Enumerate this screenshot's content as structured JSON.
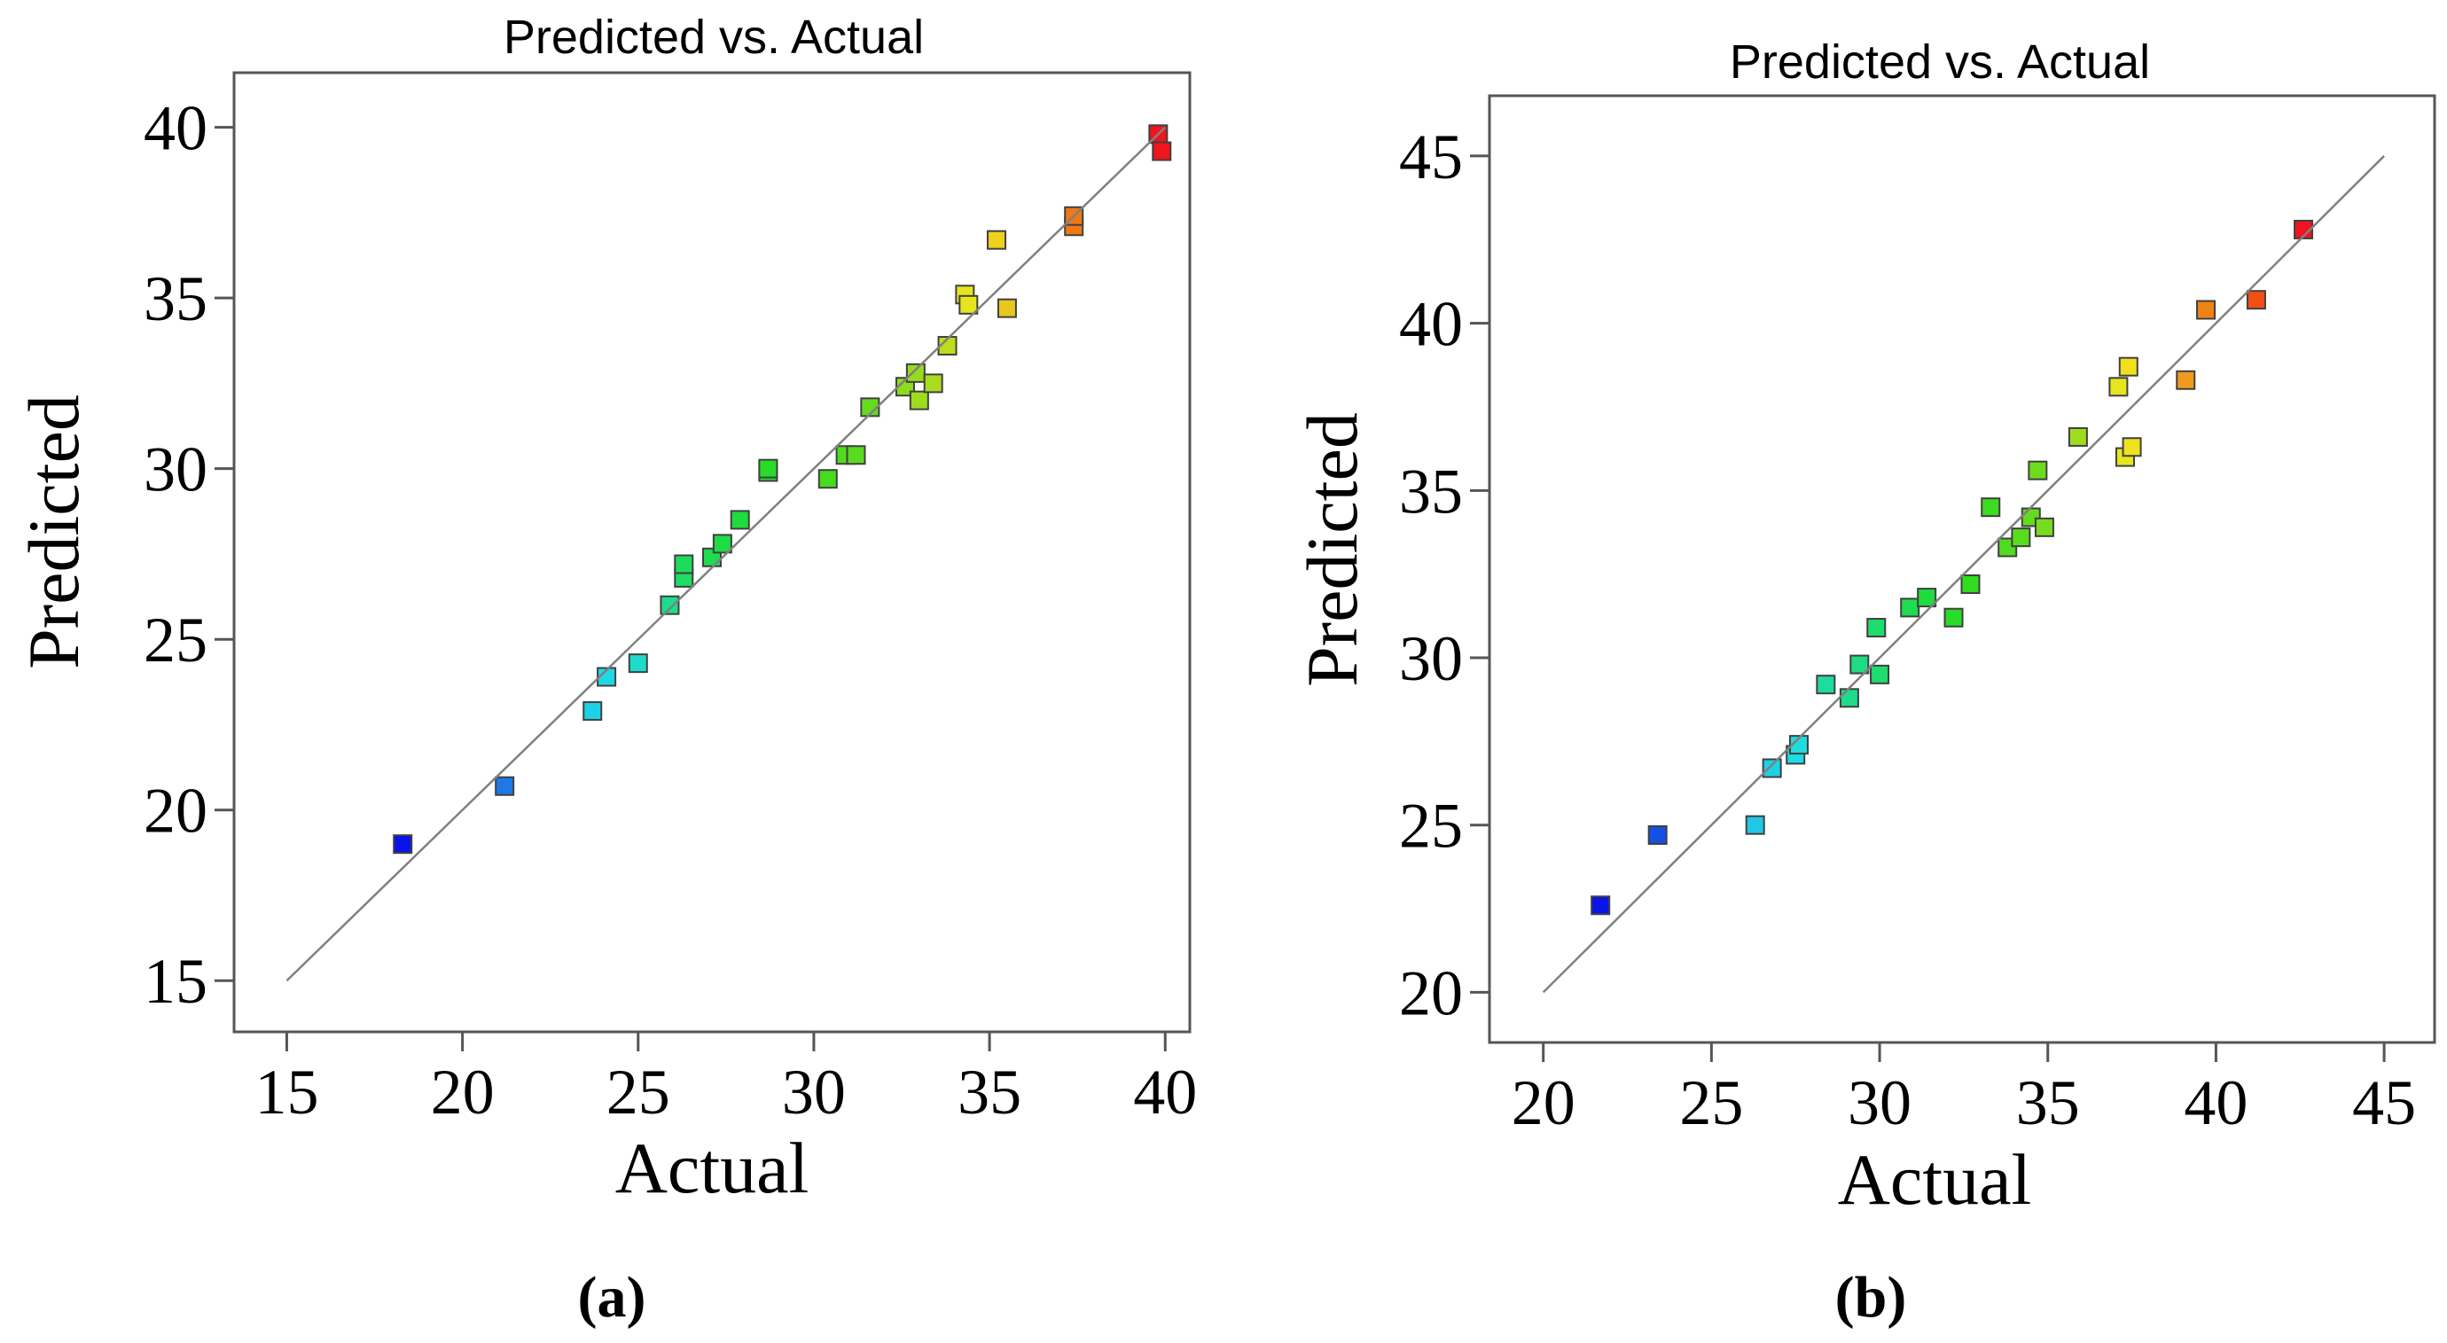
{
  "chart_data": [
    {
      "type": "scatter",
      "panel_label": "(a)",
      "title": "Predicted vs. Actual",
      "xlabel": "Actual",
      "ylabel": "Predicted",
      "xlim": [
        13.5,
        40.7
      ],
      "ylim": [
        13.5,
        41.6
      ],
      "xticks": [
        15,
        20,
        25,
        30,
        35,
        40
      ],
      "yticks": [
        15,
        20,
        25,
        30,
        35,
        40
      ],
      "reference_line": [
        [
          15,
          15
        ],
        [
          40,
          40
        ]
      ],
      "points": [
        {
          "x": 18.3,
          "y": 19.0,
          "color": "#0a14e8"
        },
        {
          "x": 21.2,
          "y": 20.7,
          "color": "#1e78e6"
        },
        {
          "x": 23.7,
          "y": 22.9,
          "color": "#1ed2e6"
        },
        {
          "x": 24.1,
          "y": 23.9,
          "color": "#1ed8e6"
        },
        {
          "x": 25.0,
          "y": 24.3,
          "color": "#1edccc"
        },
        {
          "x": 25.9,
          "y": 26.0,
          "color": "#1edc8c"
        },
        {
          "x": 26.3,
          "y": 26.8,
          "color": "#1edc64"
        },
        {
          "x": 26.3,
          "y": 27.2,
          "color": "#1edc5a"
        },
        {
          "x": 27.1,
          "y": 27.4,
          "color": "#1edc50"
        },
        {
          "x": 27.4,
          "y": 27.8,
          "color": "#1edc46"
        },
        {
          "x": 27.9,
          "y": 28.5,
          "color": "#1edc3c"
        },
        {
          "x": 28.7,
          "y": 29.9,
          "color": "#28dc28"
        },
        {
          "x": 28.7,
          "y": 30.0,
          "color": "#28dc28"
        },
        {
          "x": 30.4,
          "y": 29.7,
          "color": "#46dc1e"
        },
        {
          "x": 30.9,
          "y": 30.4,
          "color": "#50dc1e"
        },
        {
          "x": 31.2,
          "y": 30.4,
          "color": "#5adc1e"
        },
        {
          "x": 31.6,
          "y": 31.8,
          "color": "#64dc1e"
        },
        {
          "x": 32.6,
          "y": 32.4,
          "color": "#8cdc1e"
        },
        {
          "x": 32.9,
          "y": 32.8,
          "color": "#96dc1e"
        },
        {
          "x": 33.0,
          "y": 32.0,
          "color": "#a0dc1e"
        },
        {
          "x": 33.4,
          "y": 32.5,
          "color": "#aadc1e"
        },
        {
          "x": 33.8,
          "y": 33.6,
          "color": "#bedc1e"
        },
        {
          "x": 34.3,
          "y": 35.1,
          "color": "#e6e61e"
        },
        {
          "x": 34.4,
          "y": 34.8,
          "color": "#e6e61e"
        },
        {
          "x": 35.2,
          "y": 36.7,
          "color": "#f0d01e"
        },
        {
          "x": 35.5,
          "y": 34.7,
          "color": "#e6c81e"
        },
        {
          "x": 37.4,
          "y": 37.1,
          "color": "#f07814"
        },
        {
          "x": 37.4,
          "y": 37.4,
          "color": "#f07814"
        },
        {
          "x": 39.8,
          "y": 39.8,
          "color": "#f0141e"
        },
        {
          "x": 39.9,
          "y": 39.3,
          "color": "#f0141e"
        }
      ]
    },
    {
      "type": "scatter",
      "panel_label": "(b)",
      "title": "Predicted vs. Actual",
      "xlabel": "Actual",
      "ylabel": "Predicted",
      "xlim": [
        18.4,
        46.5
      ],
      "ylim": [
        18.5,
        46.8
      ],
      "xticks": [
        20,
        25,
        30,
        35,
        40,
        45
      ],
      "yticks": [
        20,
        25,
        30,
        35,
        40,
        45
      ],
      "reference_line": [
        [
          20,
          20
        ],
        [
          45,
          45
        ]
      ],
      "points": [
        {
          "x": 21.7,
          "y": 22.6,
          "color": "#0a14e8"
        },
        {
          "x": 23.4,
          "y": 24.7,
          "color": "#1450e6"
        },
        {
          "x": 26.3,
          "y": 25.0,
          "color": "#1ec8e6"
        },
        {
          "x": 26.8,
          "y": 26.7,
          "color": "#1ed2e6"
        },
        {
          "x": 27.5,
          "y": 27.1,
          "color": "#1edce6"
        },
        {
          "x": 27.6,
          "y": 27.4,
          "color": "#1edcdc"
        },
        {
          "x": 28.4,
          "y": 29.2,
          "color": "#1edca0"
        },
        {
          "x": 29.1,
          "y": 28.8,
          "color": "#1edc8c"
        },
        {
          "x": 29.4,
          "y": 29.8,
          "color": "#1edc82"
        },
        {
          "x": 29.9,
          "y": 30.9,
          "color": "#1edc6e"
        },
        {
          "x": 30.0,
          "y": 29.5,
          "color": "#1edc6e"
        },
        {
          "x": 30.9,
          "y": 31.5,
          "color": "#1edc50"
        },
        {
          "x": 31.4,
          "y": 31.8,
          "color": "#1edc3c"
        },
        {
          "x": 32.2,
          "y": 31.2,
          "color": "#28dc28"
        },
        {
          "x": 32.7,
          "y": 32.2,
          "color": "#32dc1e"
        },
        {
          "x": 33.3,
          "y": 34.5,
          "color": "#3cdc1e"
        },
        {
          "x": 33.8,
          "y": 33.3,
          "color": "#50dc1e"
        },
        {
          "x": 34.2,
          "y": 33.6,
          "color": "#5adc1e"
        },
        {
          "x": 34.5,
          "y": 34.2,
          "color": "#64dc1e"
        },
        {
          "x": 34.7,
          "y": 35.6,
          "color": "#6edc1e"
        },
        {
          "x": 34.9,
          "y": 33.9,
          "color": "#78dc1e"
        },
        {
          "x": 35.9,
          "y": 36.6,
          "color": "#a0dc1e"
        },
        {
          "x": 37.1,
          "y": 38.1,
          "color": "#e6e61e"
        },
        {
          "x": 37.3,
          "y": 36.0,
          "color": "#e6e61e"
        },
        {
          "x": 37.4,
          "y": 38.7,
          "color": "#f0e01e"
        },
        {
          "x": 37.5,
          "y": 36.3,
          "color": "#f0e01e"
        },
        {
          "x": 39.1,
          "y": 38.3,
          "color": "#f09b1e"
        },
        {
          "x": 39.7,
          "y": 40.4,
          "color": "#f08214"
        },
        {
          "x": 41.2,
          "y": 40.7,
          "color": "#f05014"
        },
        {
          "x": 42.6,
          "y": 42.8,
          "color": "#f0141e"
        }
      ]
    }
  ]
}
